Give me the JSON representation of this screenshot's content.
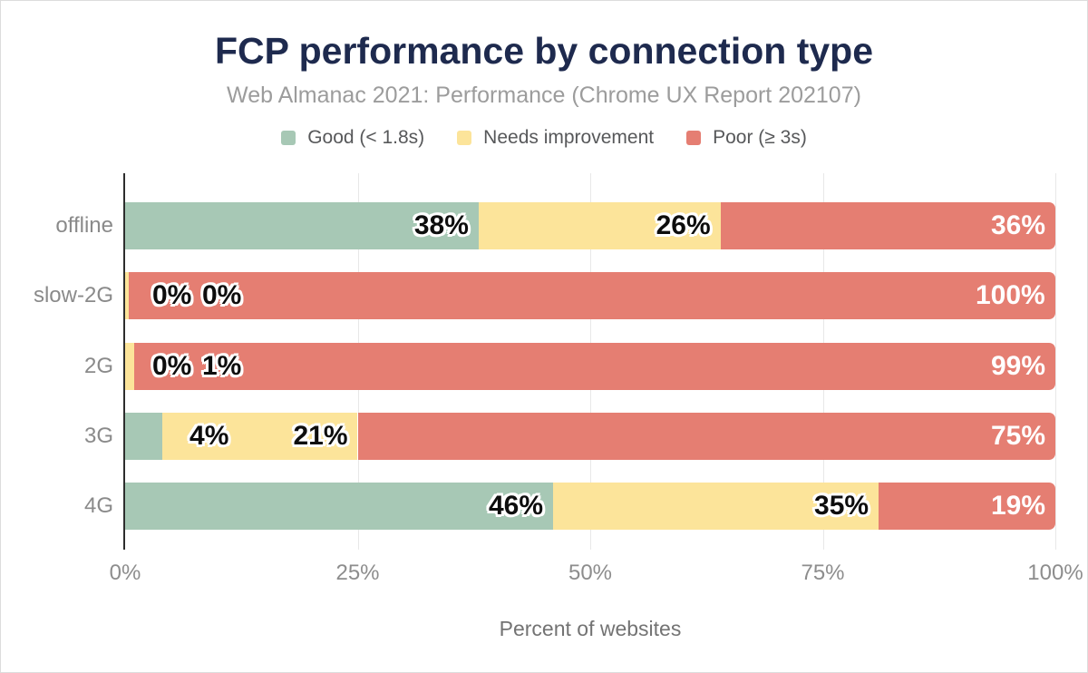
{
  "chart_data": {
    "type": "bar",
    "stacked": true,
    "orientation": "horizontal",
    "title": "FCP performance by connection type",
    "subtitle": "Web Almanac 2021: Performance (Chrome UX Report 202107)",
    "xlabel": "Percent of websites",
    "categories": [
      "offline",
      "slow-2G",
      "2G",
      "3G",
      "4G"
    ],
    "series": [
      {
        "key": "good",
        "name": "Good (< 1.8s)",
        "color": "#a7c8b5",
        "label_style": "outline",
        "values": [
          38,
          0,
          0,
          4,
          46
        ],
        "labels": [
          "38%",
          "0%",
          "0%",
          "4%",
          "46%"
        ]
      },
      {
        "key": "needs-improvement",
        "name": "Needs improvement",
        "color": "#fce49a",
        "label_style": "outline",
        "values": [
          26,
          0,
          1,
          21,
          35
        ],
        "labels": [
          "26%",
          "0%",
          "1%",
          "21%",
          "35%"
        ]
      },
      {
        "key": "poor",
        "name": "Poor (≥ 3s)",
        "color": "#e57e72",
        "label_style": "white",
        "values": [
          36,
          100,
          99,
          75,
          19
        ],
        "labels": [
          "36%",
          "100%",
          "99%",
          "75%",
          "19%"
        ]
      }
    ],
    "visual_widths_pct": [
      [
        38,
        26,
        36
      ],
      [
        0,
        0.35,
        99.65
      ],
      [
        0,
        1,
        99
      ],
      [
        4,
        21,
        75
      ],
      [
        46,
        35,
        19
      ]
    ],
    "x_ticks": [
      "0%",
      "25%",
      "50%",
      "75%",
      "100%"
    ],
    "x_tick_values": [
      0,
      25,
      50,
      75,
      100
    ],
    "xlim": [
      0,
      100
    ],
    "grid": "vertical",
    "legend_position": "top",
    "colors": {
      "title": "#1e2a4e",
      "subtitle": "#9c9c9c",
      "axis_line": "#2d2d2d",
      "gridline": "#e8e8e8",
      "tick_text": "#8d8d8d",
      "category_text": "#8a8a8a",
      "legend_text": "#57585a"
    }
  }
}
